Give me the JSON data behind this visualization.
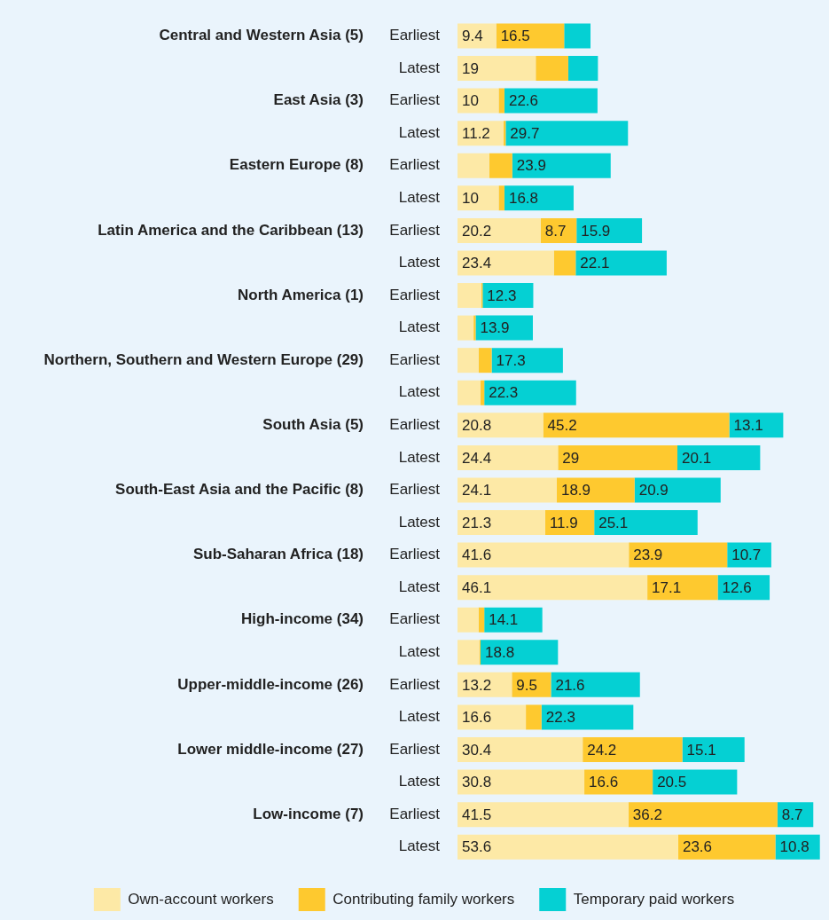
{
  "chart_data": {
    "type": "bar",
    "orientation": "horizontal",
    "stacked": true,
    "legend": "bottom",
    "tick_labels": "y",
    "grid": false,
    "categories": [
      "Earliest",
      "Latest",
      "Earliest",
      "Latest",
      "Earliest",
      "Latest",
      "Earliest",
      "Latest",
      "Earliest",
      "Latest",
      "Earliest",
      "Latest",
      "Earliest",
      "Latest",
      "Earliest",
      "Latest",
      "Earliest",
      "Latest",
      "Earliest",
      "Latest",
      "Earliest",
      "Latest",
      "Earliest",
      "Latest",
      "Earliest",
      "Latest"
    ],
    "annotations": [
      "Central and Western Asia (5)",
      "East Asia (3)",
      "Eastern Europe (8)",
      "Latin America and the Caribbean (13)",
      "North America (1)",
      "Northern, Southern and Western Europe (29)",
      "South Asia (5)",
      "South-East Asia and the Pacific (8)",
      "Sub-Saharan Africa (18)",
      "High-income (34)",
      "Upper-middle-income (26)",
      "Lower middle-income (27)",
      "Low-income (7)"
    ],
    "series": [
      {
        "name": "Own-account workers",
        "color": "#fde9a6",
        "values": [
          9.4,
          19,
          10,
          11.2,
          7.7,
          10,
          20.2,
          23.4,
          5.8,
          3.9,
          5.1,
          5.6,
          20.8,
          24.4,
          24.1,
          21.3,
          41.6,
          46.1,
          5.1,
          5.3,
          13.2,
          16.6,
          30.4,
          30.8,
          41.5,
          53.6
        ],
        "value_labels": [
          "9.4",
          "19",
          "10",
          "11.2",
          null,
          "10",
          "20.2",
          "23.4",
          null,
          null,
          null,
          null,
          "20.8",
          "24.4",
          "24.1",
          "21.3",
          "41.6",
          "46.1",
          null,
          null,
          "13.2",
          "16.6",
          "30.4",
          "30.8",
          "41.5",
          "53.6"
        ]
      },
      {
        "name": "Contributing family workers",
        "color": "#fec92f",
        "values": [
          16.5,
          7.9,
          1.4,
          0.5,
          5.6,
          1.4,
          8.7,
          5.3,
          0.3,
          0.5,
          3.2,
          0.9,
          45.2,
          29,
          18.9,
          11.9,
          23.9,
          17.1,
          1.4,
          0.3,
          9.5,
          3.8,
          24.2,
          16.6,
          36.2,
          23.6
        ],
        "value_labels": [
          "16.5",
          null,
          null,
          null,
          null,
          null,
          "8.7",
          null,
          null,
          null,
          null,
          null,
          "45.2",
          "29",
          "18.9",
          "11.9",
          "23.9",
          "17.1",
          null,
          null,
          "9.5",
          null,
          "24.2",
          "16.6",
          "36.2",
          "23.6"
        ]
      },
      {
        "name": "Temporary paid workers",
        "color": "#05d0d3",
        "values": [
          6.4,
          7.2,
          22.6,
          29.7,
          23.9,
          16.8,
          15.9,
          22.1,
          12.3,
          13.9,
          17.3,
          22.3,
          13.1,
          20.1,
          20.9,
          25.1,
          10.7,
          12.6,
          14.1,
          18.8,
          21.6,
          22.3,
          15.1,
          20.5,
          8.7,
          10.8
        ],
        "value_labels": [
          null,
          null,
          "22.6",
          "29.7",
          "23.9",
          "16.8",
          "15.9",
          "22.1",
          "12.3",
          "13.9",
          "17.3",
          "22.3",
          "13.1",
          "20.1",
          "20.9",
          "25.1",
          "10.7",
          "12.6",
          "14.1",
          "18.8",
          "21.6",
          "22.3",
          "15.1",
          "20.5",
          "8.7",
          "10.8"
        ]
      }
    ]
  }
}
